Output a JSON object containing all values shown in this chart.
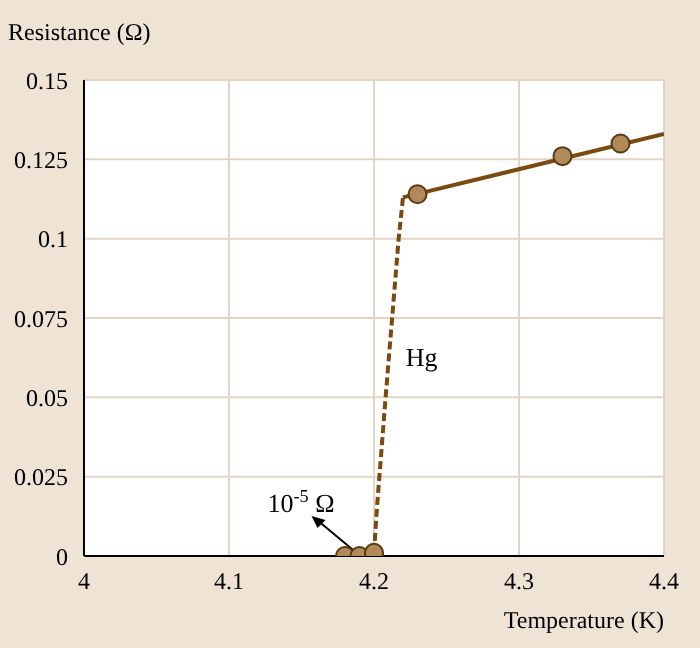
{
  "chart_data": {
    "type": "line",
    "xlabel": "Temperature (K)",
    "ylabel": "Resistance (Ω)",
    "xlim": [
      4,
      4.4
    ],
    "xticks": [
      4,
      4.1,
      4.2,
      4.3,
      4.4
    ],
    "ylim": [
      0,
      0.15
    ],
    "yticks": [
      0,
      0.025,
      0.05,
      0.075,
      0.1,
      0.125,
      0.15
    ],
    "grid": true,
    "series": [
      {
        "line_style": "dashed",
        "color": "#7a4a10",
        "x": [
          4.2,
          4.202,
          4.208,
          4.217,
          4.22
        ],
        "values": [
          0.001,
          0.015,
          0.05,
          0.1,
          0.113
        ]
      },
      {
        "line_style": "solid",
        "color": "#7a4a10",
        "x": [
          4.22,
          4.4
        ],
        "values": [
          0.113,
          0.133
        ]
      },
      {
        "type": "scatter",
        "marker": "circle",
        "color": "#b08a5a",
        "x": [
          4.18,
          4.19,
          4.2,
          4.23,
          4.33,
          4.37
        ],
        "values": [
          0,
          0,
          0.001,
          0.114,
          0.126,
          0.13
        ]
      }
    ],
    "annotations": [
      {
        "text": "Hg",
        "x": 4.215,
        "y": 0.06
      },
      {
        "text": "10$^{-5}$ Ω",
        "x": 4.19,
        "y": 0
      }
    ]
  }
}
